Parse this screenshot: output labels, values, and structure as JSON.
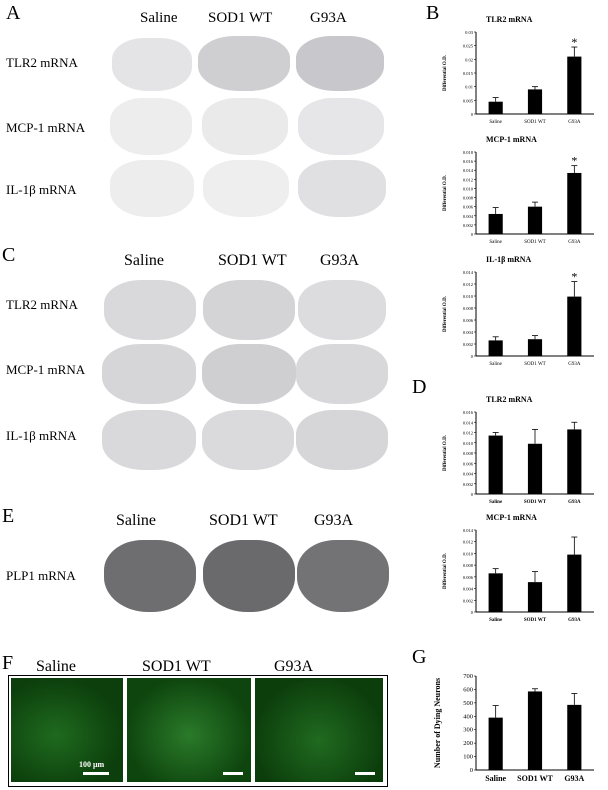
{
  "panels": {
    "A": {
      "letter": "A",
      "cols": [
        "Saline",
        "SOD1 WT",
        "G93A"
      ],
      "rows": [
        "TLR2 mRNA",
        "MCP-1 mRNA",
        "IL-1β mRNA"
      ]
    },
    "C": {
      "letter": "C",
      "cols": [
        "Saline",
        "SOD1 WT",
        "G93A"
      ],
      "rows": [
        "TLR2 mRNA",
        "MCP-1 mRNA",
        "IL-1β mRNA"
      ]
    },
    "E": {
      "letter": "E",
      "cols": [
        "Saline",
        "SOD1 WT",
        "G93A"
      ],
      "rows": [
        "PLP1 mRNA"
      ]
    },
    "F": {
      "letter": "F",
      "cols": [
        "Saline",
        "SOD1 WT",
        "G93A"
      ],
      "scale_label": "100 μm"
    },
    "B": {
      "letter": "B"
    },
    "D": {
      "letter": "D"
    },
    "G": {
      "letter": "G"
    }
  },
  "chart_data": [
    {
      "panel": "B",
      "type": "bar",
      "title": "TLR2 mRNA",
      "ylabel": "Differential O.D.",
      "categories": [
        "Saline",
        "SOD1 WT",
        "G93A"
      ],
      "values": [
        0.0045,
        0.009,
        0.021
      ],
      "errors": [
        0.0015,
        0.001,
        0.0035
      ],
      "significance": [
        "",
        "",
        "*"
      ],
      "ylim": [
        0,
        0.03
      ],
      "yticks": [
        "0",
        "0.005",
        "0.01",
        "0.015",
        "0.02",
        "0.025",
        "0.03"
      ]
    },
    {
      "panel": "B",
      "type": "bar",
      "title": "MCP-1 mRNA",
      "ylabel": "Differential O.D.",
      "categories": [
        "Saline",
        "SOD1 WT",
        "G93A"
      ],
      "values": [
        0.0044,
        0.006,
        0.0134
      ],
      "errors": [
        0.0014,
        0.001,
        0.0016
      ],
      "significance": [
        "",
        "",
        "*"
      ],
      "ylim": [
        0,
        0.018
      ],
      "yticks": [
        "0",
        "0.002",
        "0.004",
        "0.006",
        "0.008",
        "0.010",
        "0.012",
        "0.014",
        "0.016",
        "0.018"
      ]
    },
    {
      "panel": "B",
      "type": "bar",
      "title": "IL-1β mRNA",
      "ylabel": "Differential O.D.",
      "categories": [
        "Saline",
        "SOD1 WT",
        "G93A"
      ],
      "values": [
        0.0026,
        0.0028,
        0.0099
      ],
      "errors": [
        0.0006,
        0.0006,
        0.0025
      ],
      "significance": [
        "",
        "",
        "*"
      ],
      "ylim": [
        0,
        0.014
      ],
      "yticks": [
        "0",
        "0.002",
        "0.004",
        "0.006",
        "0.008",
        "0.010",
        "0.012",
        "0.014"
      ]
    },
    {
      "panel": "D",
      "type": "bar",
      "title": "TLR2 mRNA",
      "ylabel": "Differential O.D.",
      "categories": [
        "Saline",
        "SOD1 WT",
        "G93A"
      ],
      "values": [
        0.0114,
        0.0098,
        0.0126
      ],
      "errors": [
        0.0006,
        0.0028,
        0.0014
      ],
      "significance": [
        "",
        "",
        ""
      ],
      "ylim": [
        0,
        0.016
      ],
      "yticks": [
        "0",
        "0.002",
        "0.004",
        "0.006",
        "0.008",
        "0.010",
        "0.012",
        "0.014",
        "0.016"
      ]
    },
    {
      "panel": "D",
      "type": "bar",
      "title": "MCP-1 mRNA",
      "ylabel": "Differential O.D.",
      "categories": [
        "Saline",
        "SOD1 WT",
        "G93A"
      ],
      "values": [
        0.0066,
        0.0051,
        0.0098
      ],
      "errors": [
        0.0008,
        0.0018,
        0.003
      ],
      "significance": [
        "",
        "",
        ""
      ],
      "ylim": [
        0,
        0.014
      ],
      "yticks": [
        "0",
        "0.002",
        "0.004",
        "0.006",
        "0.008",
        "0.010",
        "0.012",
        "0.014"
      ]
    },
    {
      "panel": "G",
      "type": "bar",
      "title": "",
      "ylabel": "Number of Dying Neurons",
      "categories": [
        "Saline",
        "SOD1 WT",
        "G93A"
      ],
      "values": [
        390,
        585,
        485
      ],
      "errors": [
        90,
        20,
        85
      ],
      "significance": [
        "",
        "",
        ""
      ],
      "ylim": [
        0,
        700
      ],
      "yticks": [
        "0",
        "100",
        "200",
        "300",
        "400",
        "500",
        "600",
        "700"
      ]
    }
  ]
}
